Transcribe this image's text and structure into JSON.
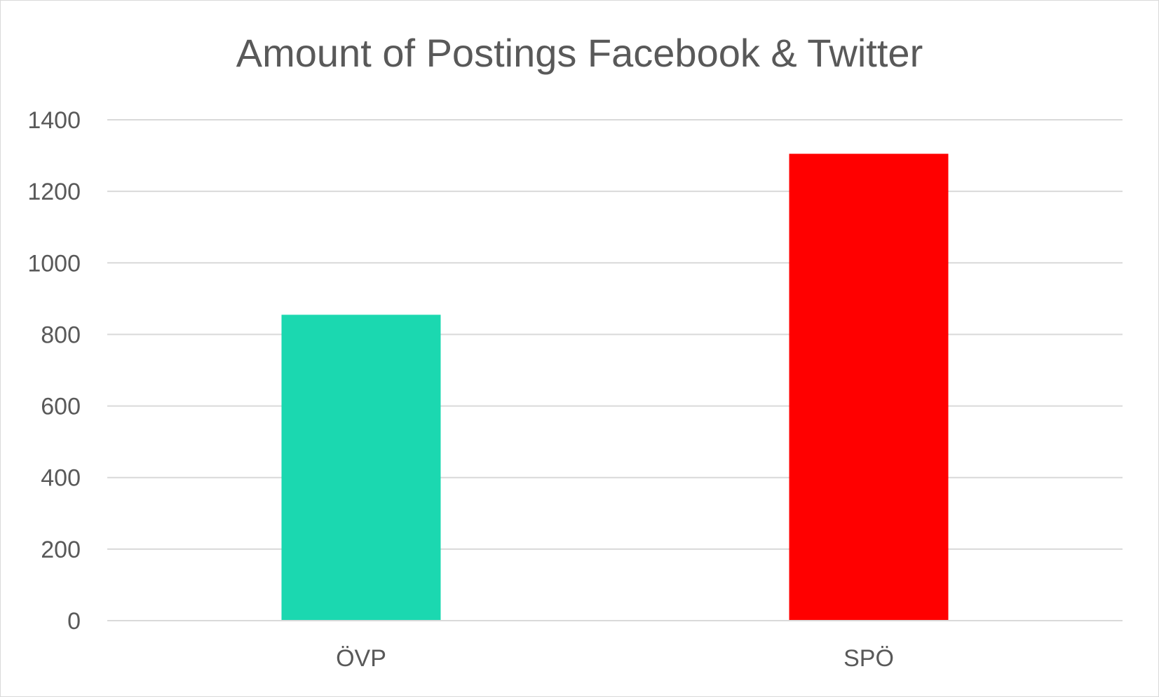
{
  "chart_data": {
    "type": "bar",
    "title": "Amount of Postings Facebook & Twitter",
    "categories": [
      "ÖVP",
      "SPÖ"
    ],
    "values": [
      855,
      1305
    ],
    "colors": [
      "#1bd8b0",
      "#ff0000"
    ],
    "xlabel": "",
    "ylabel": "",
    "ylim": [
      0,
      1400
    ],
    "yticks": [
      0,
      200,
      400,
      600,
      800,
      1000,
      1200,
      1400
    ],
    "grid": true,
    "legend": "none"
  }
}
